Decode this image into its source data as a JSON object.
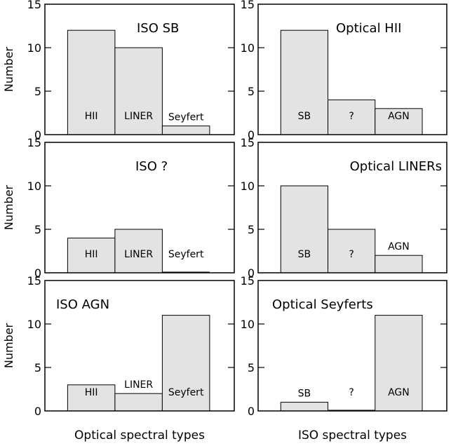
{
  "figure": {
    "x_titles": [
      "Optical spectral types",
      "ISO spectral types"
    ],
    "y_title": "Number"
  },
  "chart_data": [
    {
      "type": "bar",
      "title": "ISO SB",
      "categories": [
        "HII",
        "LINER",
        "Seyfert"
      ],
      "values": [
        12,
        10,
        1
      ],
      "ylabel": "Number",
      "xlabel": "Optical spectral types",
      "ylim": [
        0,
        15
      ],
      "yticks": [
        0,
        5,
        10,
        15
      ],
      "fill": "#e3e3e3"
    },
    {
      "type": "bar",
      "title": "Optical HII",
      "categories": [
        "SB",
        "?",
        "AGN"
      ],
      "values": [
        12,
        4,
        3
      ],
      "ylabel": "",
      "xlabel": "ISO spectral types",
      "ylim": [
        0,
        15
      ],
      "yticks": [
        0,
        5,
        10,
        15
      ],
      "fill": "#e3e3e3"
    },
    {
      "type": "bar",
      "title": "ISO ?",
      "categories": [
        "HII",
        "LINER",
        "Seyfert"
      ],
      "values": [
        4,
        5,
        0
      ],
      "ylabel": "Number",
      "xlabel": "Optical spectral types",
      "ylim": [
        0,
        15
      ],
      "yticks": [
        0,
        5,
        10,
        15
      ],
      "fill": "#e3e3e3"
    },
    {
      "type": "bar",
      "title": "Optical LINERs",
      "categories": [
        "SB",
        "?",
        "AGN"
      ],
      "values": [
        10,
        5,
        2
      ],
      "ylabel": "",
      "xlabel": "ISO spectral types",
      "ylim": [
        0,
        15
      ],
      "yticks": [
        0,
        5,
        10,
        15
      ],
      "fill": "#e3e3e3"
    },
    {
      "type": "bar",
      "title": "ISO AGN",
      "categories": [
        "HII",
        "LINER",
        "Seyfert"
      ],
      "values": [
        3,
        2,
        11
      ],
      "ylabel": "Number",
      "xlabel": "Optical spectral types",
      "ylim": [
        0,
        15
      ],
      "yticks": [
        0,
        5,
        10,
        15
      ],
      "fill": "#e3e3e3"
    },
    {
      "type": "bar",
      "title": "Optical Seyferts",
      "categories": [
        "SB",
        "?",
        "AGN"
      ],
      "values": [
        1,
        0,
        11
      ],
      "ylabel": "",
      "xlabel": "ISO spectral types",
      "ylim": [
        0,
        15
      ],
      "yticks": [
        0,
        5,
        10,
        15
      ],
      "fill": "#e3e3e3"
    }
  ]
}
